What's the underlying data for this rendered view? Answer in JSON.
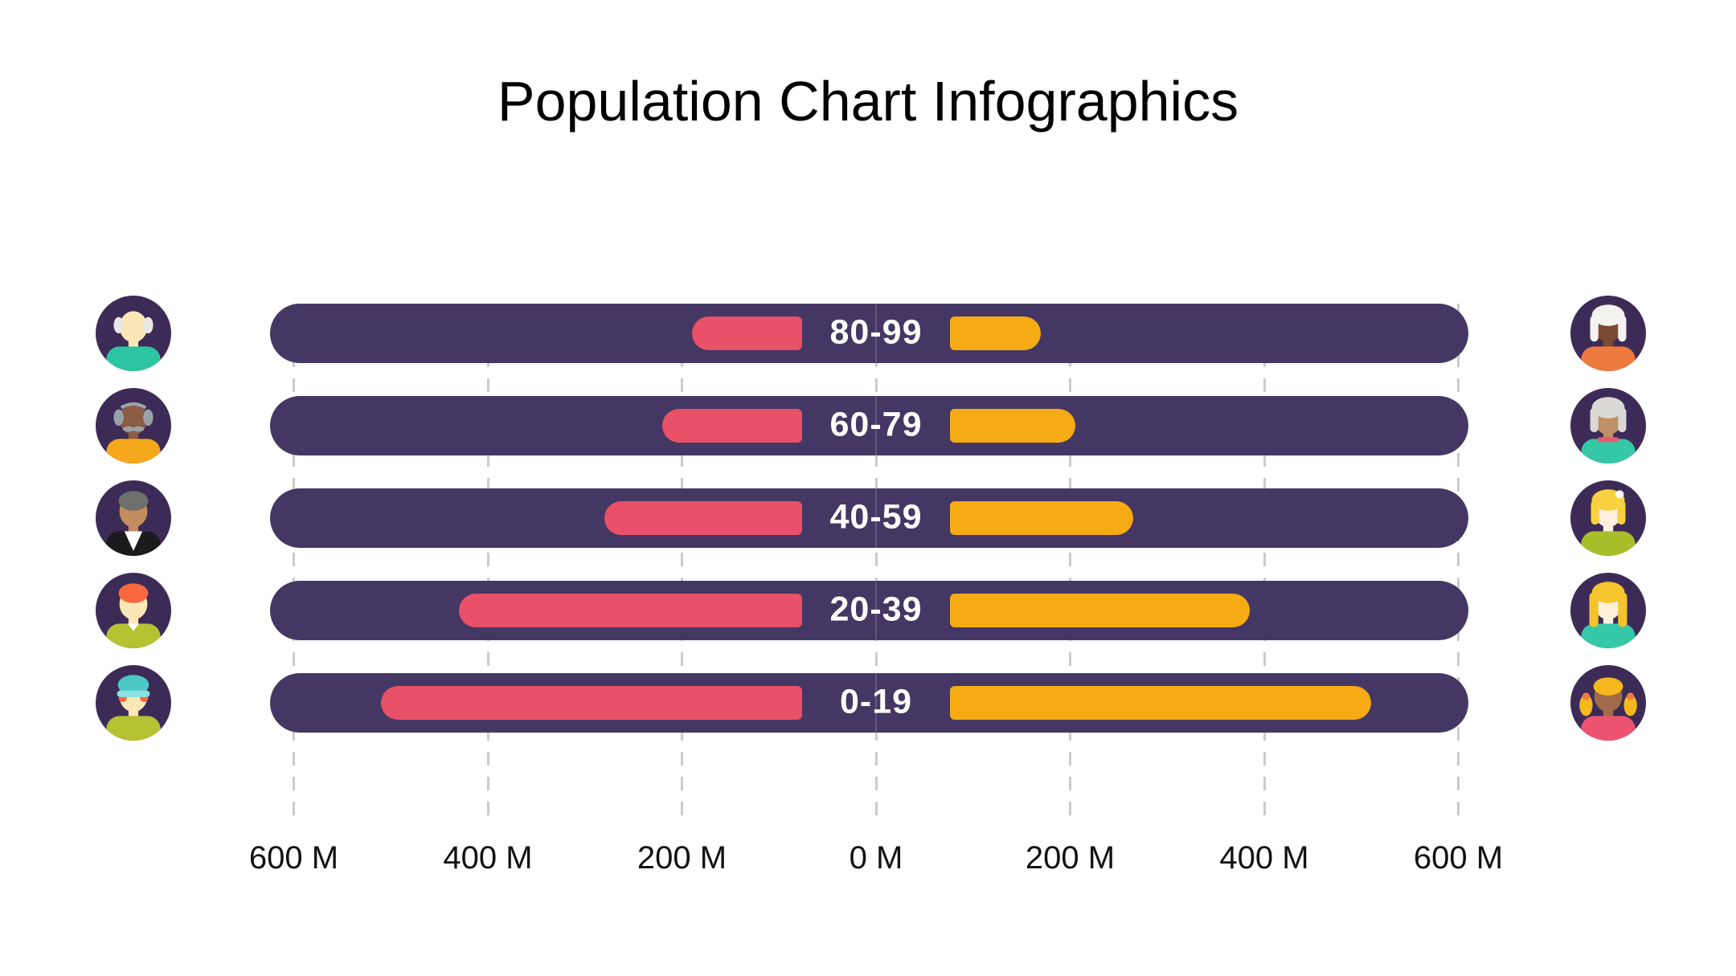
{
  "page": {
    "background": "#ffffff",
    "title": "Population Chart Infographics",
    "title_color": "#000000"
  },
  "chart_data": {
    "type": "bar",
    "variant": "diverging-horizontal population pyramid",
    "title": "Population Chart Infographics",
    "unit": "M",
    "categories": [
      "80-99",
      "60-79",
      "40-59",
      "20-39",
      "0-19"
    ],
    "series": [
      {
        "name": "left (pink)",
        "color": "#e85168",
        "values": [
          190,
          220,
          280,
          430,
          510
        ]
      },
      {
        "name": "right (orange)",
        "color": "#f6ab15",
        "values": [
          170,
          205,
          265,
          385,
          510
        ]
      }
    ],
    "x_axis": {
      "tick_labels": [
        "600 M",
        "400 M",
        "200 M",
        "0 M",
        "200 M",
        "400 M",
        "600 M"
      ],
      "tick_values": [
        -600,
        -400,
        -200,
        0,
        200,
        400,
        600
      ],
      "xlim": [
        -625,
        610
      ],
      "grid": "vertical dashed",
      "grid_color": "#cbcbcb",
      "label_color": "#111111"
    },
    "track_color": "#453763",
    "bar_label_color": "#ffffff",
    "legend": "none"
  },
  "avatars": {
    "circle_background": "#3d2b57",
    "left": [
      {
        "name": "elderly-man",
        "variant": "bald-tufts",
        "skin": "#fbe7b6",
        "hair": "#e9e7e1",
        "shirt": "#2cc5a2"
      },
      {
        "name": "senior-man",
        "variant": "bald-tufts-mustache",
        "skin": "#8a5c44",
        "hair": "#9aa2a9",
        "shirt": "#f5a81c"
      },
      {
        "name": "middle-aged-man",
        "variant": "short-hair-vneck",
        "skin": "#c38d5f",
        "hair": "#6f6f6b",
        "shirt": "#1b1b1b",
        "accent": "#ffffff"
      },
      {
        "name": "young-man",
        "variant": "short-hair-collar",
        "skin": "#fbe7b6",
        "hair": "#f9683f",
        "shirt": "#b5c232",
        "accent": "#ffffff"
      },
      {
        "name": "boy-with-cap",
        "variant": "cap",
        "skin": "#fbe7b6",
        "hair": "#f9683f",
        "shirt": "#b5c232",
        "cap": "#4cc8c9",
        "cap_band": "#8ae0e2"
      }
    ],
    "right": [
      {
        "name": "elderly-woman",
        "variant": "bob",
        "skin": "#7c4a31",
        "hair": "#f4f2ee",
        "shirt": "#ef7a3d"
      },
      {
        "name": "senior-woman",
        "variant": "bob-collar",
        "skin": "#c08f66",
        "hair": "#d9d8d4",
        "shirt": "#35c8a6",
        "accent": "#e85a6f"
      },
      {
        "name": "middle-aged-woman",
        "variant": "bob-bun",
        "skin": "#fdeedd",
        "hair": "#f8d140",
        "shirt": "#a8be2b",
        "accent": "#ffffff"
      },
      {
        "name": "young-woman",
        "variant": "long-hair",
        "skin": "#fdf0d8",
        "hair": "#f3c42c",
        "shirt": "#35c8a6"
      },
      {
        "name": "girl-pigtails",
        "variant": "pigtails",
        "skin": "#a06b49",
        "hair": "#f5b81d",
        "shirt": "#ed5470",
        "accent": "#ef7a3d"
      }
    ]
  }
}
